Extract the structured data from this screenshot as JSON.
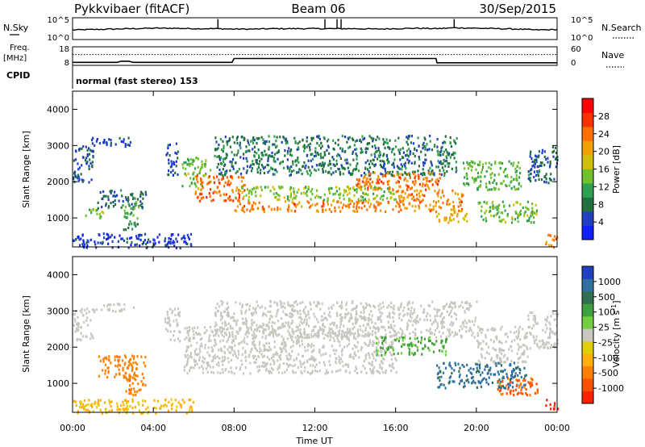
{
  "header": {
    "station": "Pykkvibaer (fitACF)",
    "beam": "Beam 06",
    "date": "30/Sep/2015"
  },
  "panels": {
    "noise": {
      "left_label": "N.Sky",
      "right_label": "N.Search",
      "ticks_left": [
        "10^5",
        "10^0"
      ],
      "ticks_right": [
        "10^5",
        "10^0"
      ],
      "right_legend_style": "dotted"
    },
    "freq": {
      "left_label_line1": "Freq.",
      "left_label_line2": "[MHz]",
      "ticks_left": [
        "18",
        "8"
      ],
      "right_label": "Nave",
      "ticks_right": [
        "60",
        "0"
      ],
      "right_legend_style": "dotted"
    },
    "cpid": {
      "label": "CPID",
      "text": "normal (fast stereo) 153"
    }
  },
  "colorbars": {
    "power": {
      "label": "Power [dB]",
      "ticks": [
        "28",
        "24",
        "20",
        "16",
        "12",
        "8",
        "4"
      ],
      "colors": [
        "#1020ff",
        "#2040c0",
        "#207040",
        "#30a050",
        "#70c030",
        "#d0c000",
        "#f0a000",
        "#ff7000",
        "#ff3000",
        "#ff0000"
      ]
    },
    "velocity": {
      "label": "Velocity [m s",
      "label_sup": "-1",
      "label_end": "]",
      "ticks": [
        "1000",
        "500",
        "100",
        "25",
        "-25",
        "-100",
        "-500",
        "-1000"
      ],
      "colors": [
        "#2040c0",
        "#3070a0",
        "#307050",
        "#40a040",
        "#70d040",
        "#c8c8c0",
        "#e0d000",
        "#ffb000",
        "#ff8000",
        "#ff5000",
        "#ff2000"
      ]
    }
  },
  "chart_data": [
    {
      "type": "line",
      "name": "noise",
      "x_range": [
        "00:00",
        "24:00"
      ],
      "ylabel": "N.Sky",
      "y_scale": "log",
      "series": [
        {
          "name": "N.Sky",
          "style": "solid",
          "log10_values": [
            2.2,
            2.3,
            2.4,
            2.5,
            2.6,
            2.6,
            2.5,
            2.5,
            2.4,
            2.4,
            2.5,
            2.5,
            2.5,
            2.5,
            2.5,
            2.4,
            2.5,
            2.6,
            2.5,
            2.7,
            2.6,
            2.5,
            2.4,
            2.2,
            2.3
          ],
          "spikes_hours": [
            7.2,
            12.5,
            13.1,
            13.3,
            18.9
          ]
        }
      ]
    },
    {
      "type": "line",
      "name": "frequency",
      "x_range": [
        "00:00",
        "24:00"
      ],
      "ylabel": "Freq. [MHz]",
      "ylim": [
        8,
        18
      ],
      "series": [
        {
          "name": "Freq.",
          "style": "solid",
          "x_hours": [
            0,
            2.2,
            2.4,
            2.8,
            3.0,
            7.9,
            8.0,
            18.0,
            18.05,
            24
          ],
          "values": [
            9.6,
            9.6,
            10.2,
            10.2,
            9.6,
            9.6,
            11.7,
            11.7,
            9.4,
            9.4
          ]
        },
        {
          "name": "Nave",
          "style": "dotted",
          "x_hours": [
            0,
            24
          ],
          "values_nave": [
            35,
            35
          ]
        }
      ]
    },
    {
      "type": "heatmap",
      "name": "power",
      "x_range": [
        "00:00",
        "24:00"
      ],
      "xticks": [
        "00:00",
        "04:00",
        "08:00",
        "12:00",
        "16:00",
        "20:00",
        "00:00"
      ],
      "ylabel": "Slant Range [km]",
      "ylim": [
        200,
        4500
      ],
      "yticks": [
        "1000",
        "2000",
        "3000",
        "4000"
      ],
      "colorbar_label": "Power [dB]",
      "colorbar_range": [
        0,
        32
      ],
      "regions": [
        {
          "t0": 0.0,
          "t1": 1.0,
          "r0": 2000,
          "r1": 3100,
          "p": 6
        },
        {
          "t0": 0.9,
          "t1": 2.9,
          "r0": 3000,
          "r1": 3250,
          "p": 5
        },
        {
          "t0": 0.6,
          "t1": 1.5,
          "r0": 1000,
          "r1": 1300,
          "p": 14
        },
        {
          "t0": 1.2,
          "t1": 3.6,
          "r0": 1300,
          "r1": 1800,
          "p": 7
        },
        {
          "t0": 2.5,
          "t1": 3.3,
          "r0": 700,
          "r1": 1500,
          "p": 11
        },
        {
          "t0": 0.0,
          "t1": 6.0,
          "r0": 200,
          "r1": 600,
          "p": 4
        },
        {
          "t0": 4.6,
          "t1": 5.2,
          "r0": 2200,
          "r1": 3100,
          "p": 5
        },
        {
          "t0": 5.4,
          "t1": 6.8,
          "r0": 1900,
          "r1": 2700,
          "p": 14
        },
        {
          "t0": 6.0,
          "t1": 8.5,
          "r0": 1500,
          "r1": 2200,
          "p": 25
        },
        {
          "t0": 8.0,
          "t1": 16.0,
          "r0": 1200,
          "r1": 1500,
          "p": 23
        },
        {
          "t0": 8.0,
          "t1": 16.0,
          "r0": 1500,
          "r1": 1900,
          "p": 15
        },
        {
          "t0": 7.0,
          "t1": 19.0,
          "r0": 2200,
          "r1": 3300,
          "p": 8
        },
        {
          "t0": 14.0,
          "t1": 18.2,
          "r0": 1800,
          "r1": 2300,
          "p": 24
        },
        {
          "t0": 16.0,
          "t1": 19.3,
          "r0": 1200,
          "r1": 1800,
          "p": 23
        },
        {
          "t0": 18.0,
          "t1": 19.5,
          "r0": 900,
          "r1": 1300,
          "p": 19
        },
        {
          "t0": 19.3,
          "t1": 22.2,
          "r0": 1800,
          "r1": 2600,
          "p": 13
        },
        {
          "t0": 20.0,
          "t1": 23.0,
          "r0": 900,
          "r1": 1500,
          "p": 14
        },
        {
          "t0": 22.5,
          "t1": 24.0,
          "r0": 2000,
          "r1": 3000,
          "p": 7
        },
        {
          "t0": 23.4,
          "t1": 24.0,
          "r0": 200,
          "r1": 600,
          "p": 24
        }
      ]
    },
    {
      "type": "heatmap",
      "name": "velocity",
      "x_range": [
        "00:00",
        "24:00"
      ],
      "xticks": [
        "00:00",
        "04:00",
        "08:00",
        "12:00",
        "16:00",
        "20:00",
        "00:00"
      ],
      "xlabel": "Time UT",
      "ylabel": "Slant Range [km]",
      "ylim": [
        200,
        4500
      ],
      "yticks": [
        "1000",
        "2000",
        "3000",
        "4000"
      ],
      "colorbar_label": "Velocity [m s-1]",
      "regions": [
        {
          "t0": 0.0,
          "t1": 1.0,
          "r0": 2200,
          "r1": 3100,
          "v": 0
        },
        {
          "t0": 1.0,
          "t1": 3.0,
          "r0": 3000,
          "r1": 3250,
          "v": 0
        },
        {
          "t0": 0.0,
          "t1": 6.0,
          "r0": 200,
          "r1": 600,
          "v": -60
        },
        {
          "t0": 1.2,
          "t1": 3.6,
          "r0": 1200,
          "r1": 1800,
          "v": -150
        },
        {
          "t0": 2.5,
          "t1": 3.6,
          "r0": 700,
          "r1": 1300,
          "v": -200
        },
        {
          "t0": 4.5,
          "t1": 5.3,
          "r0": 2200,
          "r1": 3100,
          "v": 0
        },
        {
          "t0": 5.5,
          "t1": 16.0,
          "r0": 1300,
          "r1": 2600,
          "v": 0
        },
        {
          "t0": 7.0,
          "t1": 20.0,
          "r0": 2300,
          "r1": 3300,
          "v": 0
        },
        {
          "t0": 15.0,
          "t1": 18.5,
          "r0": 1800,
          "r1": 2300,
          "v": 60
        },
        {
          "t0": 18.0,
          "t1": 22.5,
          "r0": 900,
          "r1": 1600,
          "v": 300
        },
        {
          "t0": 20.0,
          "t1": 22.5,
          "r0": 1600,
          "r1": 2600,
          "v": 0
        },
        {
          "t0": 21.0,
          "t1": 23.0,
          "r0": 700,
          "r1": 1200,
          "v": -300
        },
        {
          "t0": 22.5,
          "t1": 24.0,
          "r0": 2000,
          "r1": 3000,
          "v": 0
        },
        {
          "t0": 23.4,
          "t1": 24.0,
          "r0": 300,
          "r1": 600,
          "v": -800
        }
      ]
    }
  ]
}
